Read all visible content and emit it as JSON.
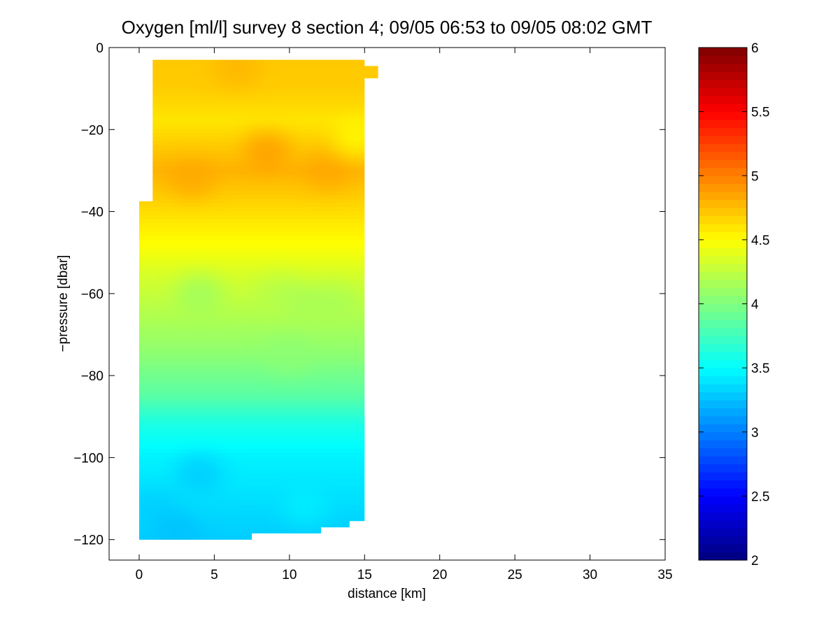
{
  "chart_data": {
    "type": "heatmap",
    "title": "Oxygen [ml/l] survey 8 section 4; 09/05 06:53 to 09/05 08:02 GMT",
    "xlabel": "distance [km]",
    "ylabel": "−pressure [dbar]",
    "xlim": [
      -2,
      35
    ],
    "ylim": [
      -125,
      0
    ],
    "grid": false,
    "x_ticks": [
      "0",
      "5",
      "10",
      "15",
      "20",
      "25",
      "30",
      "35"
    ],
    "y_ticks": [
      "0",
      "−20",
      "−40",
      "−60",
      "−80",
      "−100",
      "−120"
    ],
    "colorbar": {
      "range": [
        2,
        6
      ],
      "colormap": "jet",
      "position": "right",
      "ticks": [
        "2",
        "2.5",
        "3",
        "3.5",
        "4",
        "4.5",
        "5",
        "5.5",
        "6"
      ]
    },
    "depth_bounds": {
      "top": [
        {
          "x": 0,
          "y": -37.5
        },
        {
          "x": 0.9,
          "y": -37.5
        },
        {
          "x": 0.9,
          "y": -3
        },
        {
          "x": 15,
          "y": -3
        },
        {
          "x": 15,
          "y": -4.5
        },
        {
          "x": 15.9,
          "y": -4.5
        },
        {
          "x": 15.9,
          "y": -7.5
        },
        {
          "x": 15,
          "y": -7.5
        }
      ],
      "bottom": [
        {
          "x": 0,
          "y": -120
        },
        {
          "x": 7.5,
          "y": -120
        },
        {
          "x": 7.5,
          "y": -118.5
        },
        {
          "x": 12.1,
          "y": -118.5
        },
        {
          "x": 12.1,
          "y": -117
        },
        {
          "x": 14,
          "y": -117
        },
        {
          "x": 14,
          "y": -115.5
        },
        {
          "x": 15,
          "y": -115.5
        }
      ]
    },
    "depth_profile": [
      {
        "depth": 0,
        "value": 4.72
      },
      {
        "depth": 10,
        "value": 4.7
      },
      {
        "depth": 18,
        "value": 4.6
      },
      {
        "depth": 25,
        "value": 4.72
      },
      {
        "depth": 30,
        "value": 4.8
      },
      {
        "depth": 35,
        "value": 4.72
      },
      {
        "depth": 42,
        "value": 4.6
      },
      {
        "depth": 48,
        "value": 4.5
      },
      {
        "depth": 55,
        "value": 4.35
      },
      {
        "depth": 65,
        "value": 4.2
      },
      {
        "depth": 75,
        "value": 4.05
      },
      {
        "depth": 85,
        "value": 3.85
      },
      {
        "depth": 92,
        "value": 3.6
      },
      {
        "depth": 100,
        "value": 3.45
      },
      {
        "depth": 110,
        "value": 3.38
      },
      {
        "depth": 120,
        "value": 3.3
      }
    ],
    "features": [
      {
        "x": 8.5,
        "y": -25,
        "value": 4.9
      },
      {
        "x": 3.5,
        "y": -32,
        "value": 4.85
      },
      {
        "x": 12.5,
        "y": -30,
        "value": 4.85
      },
      {
        "x": 6.5,
        "y": -5,
        "value": 4.8
      },
      {
        "x": 14.5,
        "y": -22,
        "value": 4.5
      },
      {
        "x": 4,
        "y": -60,
        "value": 4.1
      },
      {
        "x": 9.3,
        "y": -60,
        "value": 4.2
      },
      {
        "x": 11,
        "y": -62,
        "value": 4.15
      },
      {
        "x": 13,
        "y": -62,
        "value": 4.15
      },
      {
        "x": 4,
        "y": -104,
        "value": 3.28
      },
      {
        "x": 1,
        "y": -112,
        "value": 3.3
      },
      {
        "x": 2.5,
        "y": -118,
        "value": 3.25
      },
      {
        "x": 11,
        "y": -112,
        "value": 3.45
      },
      {
        "x": 10,
        "y": -75,
        "value": 4.05
      }
    ]
  }
}
